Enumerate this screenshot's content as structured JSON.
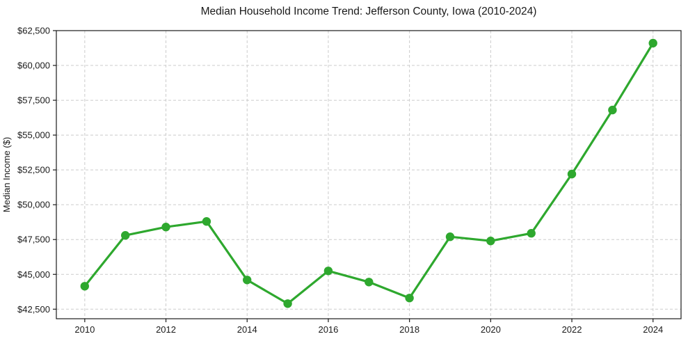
{
  "chart_data": {
    "type": "line",
    "title": "Median Household Income Trend: Jefferson County, Iowa (2010-2024)",
    "xlabel": "",
    "ylabel": "Median Income ($)",
    "series_name": "Median Household Income",
    "x": [
      2010,
      2011,
      2012,
      2013,
      2014,
      2015,
      2016,
      2017,
      2018,
      2019,
      2020,
      2021,
      2022,
      2023,
      2024
    ],
    "values": [
      44150,
      47800,
      48400,
      48800,
      44600,
      42900,
      45250,
      44450,
      43300,
      47700,
      47400,
      47950,
      52200,
      56800,
      61600
    ],
    "xticks": [
      2010,
      2012,
      2014,
      2016,
      2018,
      2020,
      2022,
      2024
    ],
    "xtick_labels": [
      "2010",
      "2012",
      "2014",
      "2016",
      "2018",
      "2020",
      "2022",
      "2024"
    ],
    "yticks": [
      42500,
      45000,
      47500,
      50000,
      52500,
      55000,
      57500,
      60000,
      62500
    ],
    "ytick_labels": [
      "$42,500",
      "$45,000",
      "$47,500",
      "$50,000",
      "$52,500",
      "$55,000",
      "$57,500",
      "$60,000",
      "$62,500"
    ],
    "xlim": [
      2009.3,
      2024.69
    ],
    "ylim": [
      41815,
      62500
    ],
    "grid": true,
    "grid_style": "dashed",
    "legend": false,
    "marker": "circle",
    "colors": {
      "line": "#2ea82e",
      "marker": "#2ea82e",
      "grid": "#cbcbcb",
      "spine": "#1a1a1a",
      "tick_text": "#1a1a1a",
      "background": "#ffffff"
    }
  }
}
